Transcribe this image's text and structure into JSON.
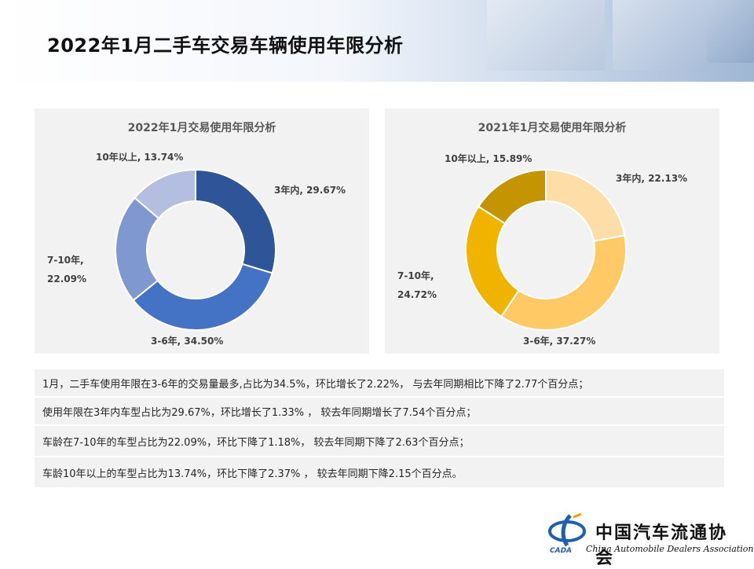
{
  "page": {
    "title": "2022年1月二手车交易车辆使用年限分析",
    "brand_colors": {
      "blue_dark": "#2e5597",
      "blue_mid": "#4472c4",
      "blue_light": "#8098d0",
      "blue_pale": "#b4bee0",
      "gold_pale": "#ffdda6",
      "gold_light": "#ffc966",
      "gold": "#f0b400",
      "gold_dark": "#c49500"
    }
  },
  "chart_data": [
    {
      "type": "pie",
      "variant": "donut",
      "title": "2022年1月交易使用年限分析",
      "slices": [
        {
          "label": "3年内",
          "value": 29.67,
          "text": "3年内, 29.67%",
          "color": "#2e5597"
        },
        {
          "label": "3-6年",
          "value": 34.5,
          "text": "3-6年, 34.50%",
          "color": "#4472c4"
        },
        {
          "label": "7-10年",
          "value": 22.09,
          "text": "7-10年,|22.09%",
          "color": "#8098d0"
        },
        {
          "label": "10年以上",
          "value": 13.74,
          "text": "10年以上, 13.74%",
          "color": "#b4bee0"
        }
      ]
    },
    {
      "type": "pie",
      "variant": "donut",
      "title": "2021年1月交易使用年限分析",
      "slices": [
        {
          "label": "3年内",
          "value": 22.13,
          "text": "3年内, 22.13%",
          "color": "#ffdda6"
        },
        {
          "label": "3-6年",
          "value": 37.27,
          "text": "3-6年, 37.27%",
          "color": "#ffc966"
        },
        {
          "label": "7-10年",
          "value": 24.72,
          "text": "7-10年,|24.72%",
          "color": "#f0b400"
        },
        {
          "label": "10年以上",
          "value": 15.89,
          "text": "10年以上, 15.89%",
          "color": "#c49500"
        }
      ]
    }
  ],
  "notes": [
    "1月，二手车使用年限在3-6年的交易量最多,占比为34.5%，环比增长了2.22%， 与去年同期相比下降了2.77个百分点；",
    "使用年限在3年内车型占比为29.67%，环比增长了1.33% ， 较去年同期增长了7.54个百分点；",
    "车龄在7-10年的车型占比为22.09%，环比下降了1.18%， 较去年同期下降了2.63个百分点；",
    "车龄10年以上的车型占比为13.74%，环比下降了2.37% ， 较去年同期下降2.15个百分点。"
  ],
  "logo": {
    "name_cn": "中国汽车流通协会",
    "name_en": "China Automobile Dealers Association",
    "abbr": "CADA"
  }
}
